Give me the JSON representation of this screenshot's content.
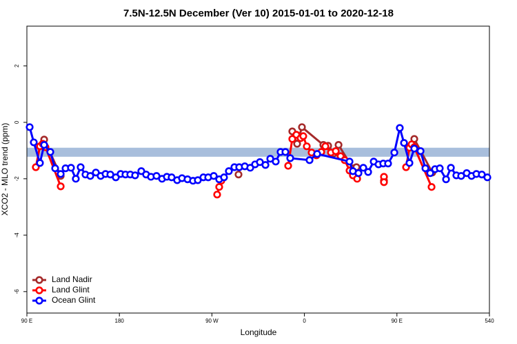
{
  "chart_data": {
    "type": "line",
    "title": "7.5N-12.5N December (Ver 10)   2015-01-01 to 2020-12-18",
    "x_label": "Longitude",
    "y_label": "XCO2 - MLO trend (ppm)",
    "xlim": [
      90,
      540
    ],
    "xticks": [
      {
        "value": 90,
        "label": "90 E"
      },
      180,
      {
        "value": 270,
        "label": "90 W"
      },
      {
        "value": 360,
        "label": "0"
      },
      {
        "value": 450,
        "label": "90 E"
      },
      540
    ],
    "ylim": [
      -6.76,
      3.41
    ],
    "yticks": [
      -6,
      -4,
      -2,
      0,
      2
    ],
    "band": {
      "ymin": -1.22,
      "ymax": -0.9,
      "color": "#a8bedc"
    },
    "legend": "bottom-left",
    "series": [
      {
        "name": "Land Nadir",
        "color": "#a52a2a",
        "x": [
          102.7,
          106.8,
          122.9,
          null,
          295.9,
          null,
          348.2,
          352.9,
          357.6,
          378.4,
          383.1,
          388.5,
          393.2,
          407.2,
          410.6,
          null,
          437.4,
          null,
          462.2,
          466.9,
          484.4
        ],
        "values": [
          -0.85,
          -0.61,
          -1.9,
          null,
          -1.85,
          null,
          -0.32,
          -0.76,
          -0.17,
          -0.8,
          -0.83,
          -1.1,
          -0.8,
          -1.63,
          -1.59,
          null,
          -2.07,
          null,
          -0.88,
          -0.59,
          -1.78
        ]
      },
      {
        "name": "Land Glint",
        "color": "#ff0000",
        "x": [
          98.7,
          102.7,
          105.4,
          108.1,
          122.9,
          null,
          275.1,
          277.1,
          279.1,
          null,
          344.2,
          348.2,
          352.2,
          356.3,
          358.9,
          362.3,
          367.0,
          371.7,
          376.4,
          380.4,
          385.8,
          390.5,
          395.2,
          399.2,
          403.9,
          407.2,
          411.3,
          null,
          437.4,
          437.4,
          null,
          458.9,
          462.2,
          464.3,
          466.9,
          483.7
        ],
        "values": [
          -1.59,
          -0.85,
          -0.76,
          -0.88,
          -2.27,
          null,
          -2.56,
          -2.29,
          -2.07,
          null,
          -1.54,
          -0.59,
          -0.44,
          -0.56,
          -0.49,
          -0.85,
          -1.07,
          -1.17,
          -1.05,
          -0.85,
          -1.07,
          -1.02,
          -1.2,
          -1.34,
          -1.71,
          -1.88,
          -2.0,
          null,
          -1.93,
          -2.12,
          null,
          -1.59,
          -0.9,
          -0.78,
          -0.88,
          -2.29
        ]
      },
      {
        "name": "Ocean Glint",
        "color": "#0000ff",
        "x": [
          92.7,
          96.7,
          102.7,
          106.8,
          112.8,
          117.5,
          122.9,
          127.6,
          132.9,
          137.6,
          142.3,
          147.0,
          151.7,
          157.1,
          161.8,
          166.5,
          171.2,
          176.5,
          181.2,
          185.9,
          190.6,
          195.3,
          201.3,
          206.0,
          210.7,
          216.1,
          221.5,
          226.2,
          230.8,
          236.2,
          240.9,
          246.3,
          251.6,
          256.3,
          261.7,
          266.4,
          271.8,
          277.1,
          281.8,
          286.5,
          291.9,
          296.6,
          302.0,
          307.3,
          312.0,
          316.7,
          322.1,
          326.8,
          332.1,
          336.8,
          341.5,
          346.2,
          365.0,
          372.4,
          403.9,
          407.2,
          412.6,
          417.3,
          422.0,
          427.4,
          432.1,
          436.7,
          441.4,
          447.5,
          452.8,
          456.9,
          462.2,
          466.9,
          473.0,
          477.7,
          482.4,
          487.1,
          491.7,
          497.8,
          502.5,
          507.8,
          512.5,
          517.9,
          522.6,
          527.3,
          532.6,
          538.0
        ],
        "values": [
          -0.17,
          -0.71,
          -1.44,
          -0.8,
          -1.05,
          -1.63,
          -1.83,
          -1.63,
          -1.61,
          -2.0,
          -1.59,
          -1.85,
          -1.9,
          -1.78,
          -1.9,
          -1.83,
          -1.85,
          -1.95,
          -1.83,
          -1.85,
          -1.85,
          -1.88,
          -1.73,
          -1.85,
          -1.93,
          -1.9,
          -2.0,
          -1.93,
          -1.95,
          -2.05,
          -1.98,
          -2.02,
          -2.07,
          -2.05,
          -1.95,
          -1.95,
          -1.9,
          -2.02,
          -1.95,
          -1.73,
          -1.59,
          -1.59,
          -1.56,
          -1.61,
          -1.49,
          -1.41,
          -1.51,
          -1.29,
          -1.39,
          -1.05,
          -1.05,
          -1.27,
          -1.34,
          -1.12,
          -1.39,
          -1.73,
          -1.8,
          -1.61,
          -1.76,
          -1.39,
          -1.49,
          -1.46,
          -1.46,
          -1.07,
          -0.2,
          -0.73,
          -1.44,
          -0.93,
          -1.02,
          -1.63,
          -1.8,
          -1.66,
          -1.63,
          -2.02,
          -1.61,
          -1.88,
          -1.9,
          -1.8,
          -1.9,
          -1.83,
          -1.85,
          -1.95
        ]
      }
    ]
  }
}
